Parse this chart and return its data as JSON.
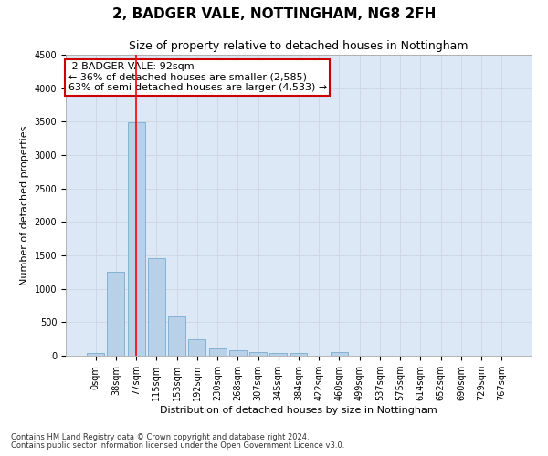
{
  "title": "2, BADGER VALE, NOTTINGHAM, NG8 2FH",
  "subtitle": "Size of property relative to detached houses in Nottingham",
  "xlabel": "Distribution of detached houses by size in Nottingham",
  "ylabel": "Number of detached properties",
  "bar_color": "#b8d0e8",
  "bar_edge_color": "#7aaace",
  "categories": [
    "0sqm",
    "38sqm",
    "77sqm",
    "115sqm",
    "153sqm",
    "192sqm",
    "230sqm",
    "268sqm",
    "307sqm",
    "345sqm",
    "384sqm",
    "422sqm",
    "460sqm",
    "499sqm",
    "537sqm",
    "575sqm",
    "614sqm",
    "652sqm",
    "690sqm",
    "729sqm",
    "767sqm"
  ],
  "values": [
    40,
    1260,
    3490,
    1460,
    580,
    240,
    115,
    80,
    55,
    40,
    35,
    0,
    55,
    0,
    0,
    0,
    0,
    0,
    0,
    0,
    0
  ],
  "ylim": [
    0,
    4500
  ],
  "yticks": [
    0,
    500,
    1000,
    1500,
    2000,
    2500,
    3000,
    3500,
    4000,
    4500
  ],
  "property_label": "2 BADGER VALE: 92sqm",
  "pct_smaller": 36,
  "n_smaller": 2585,
  "pct_larger": 63,
  "n_larger": 4533,
  "red_line_index": 2,
  "annotation_box_color": "#cc0000",
  "footer_line1": "Contains HM Land Registry data © Crown copyright and database right 2024.",
  "footer_line2": "Contains public sector information licensed under the Open Government Licence v3.0.",
  "grid_color": "#d0d8e4",
  "bg_color": "#dce8f5",
  "title_fontsize": 11,
  "subtitle_fontsize": 9,
  "axis_label_fontsize": 8,
  "tick_fontsize": 7,
  "footer_fontsize": 6,
  "annotation_fontsize": 8
}
